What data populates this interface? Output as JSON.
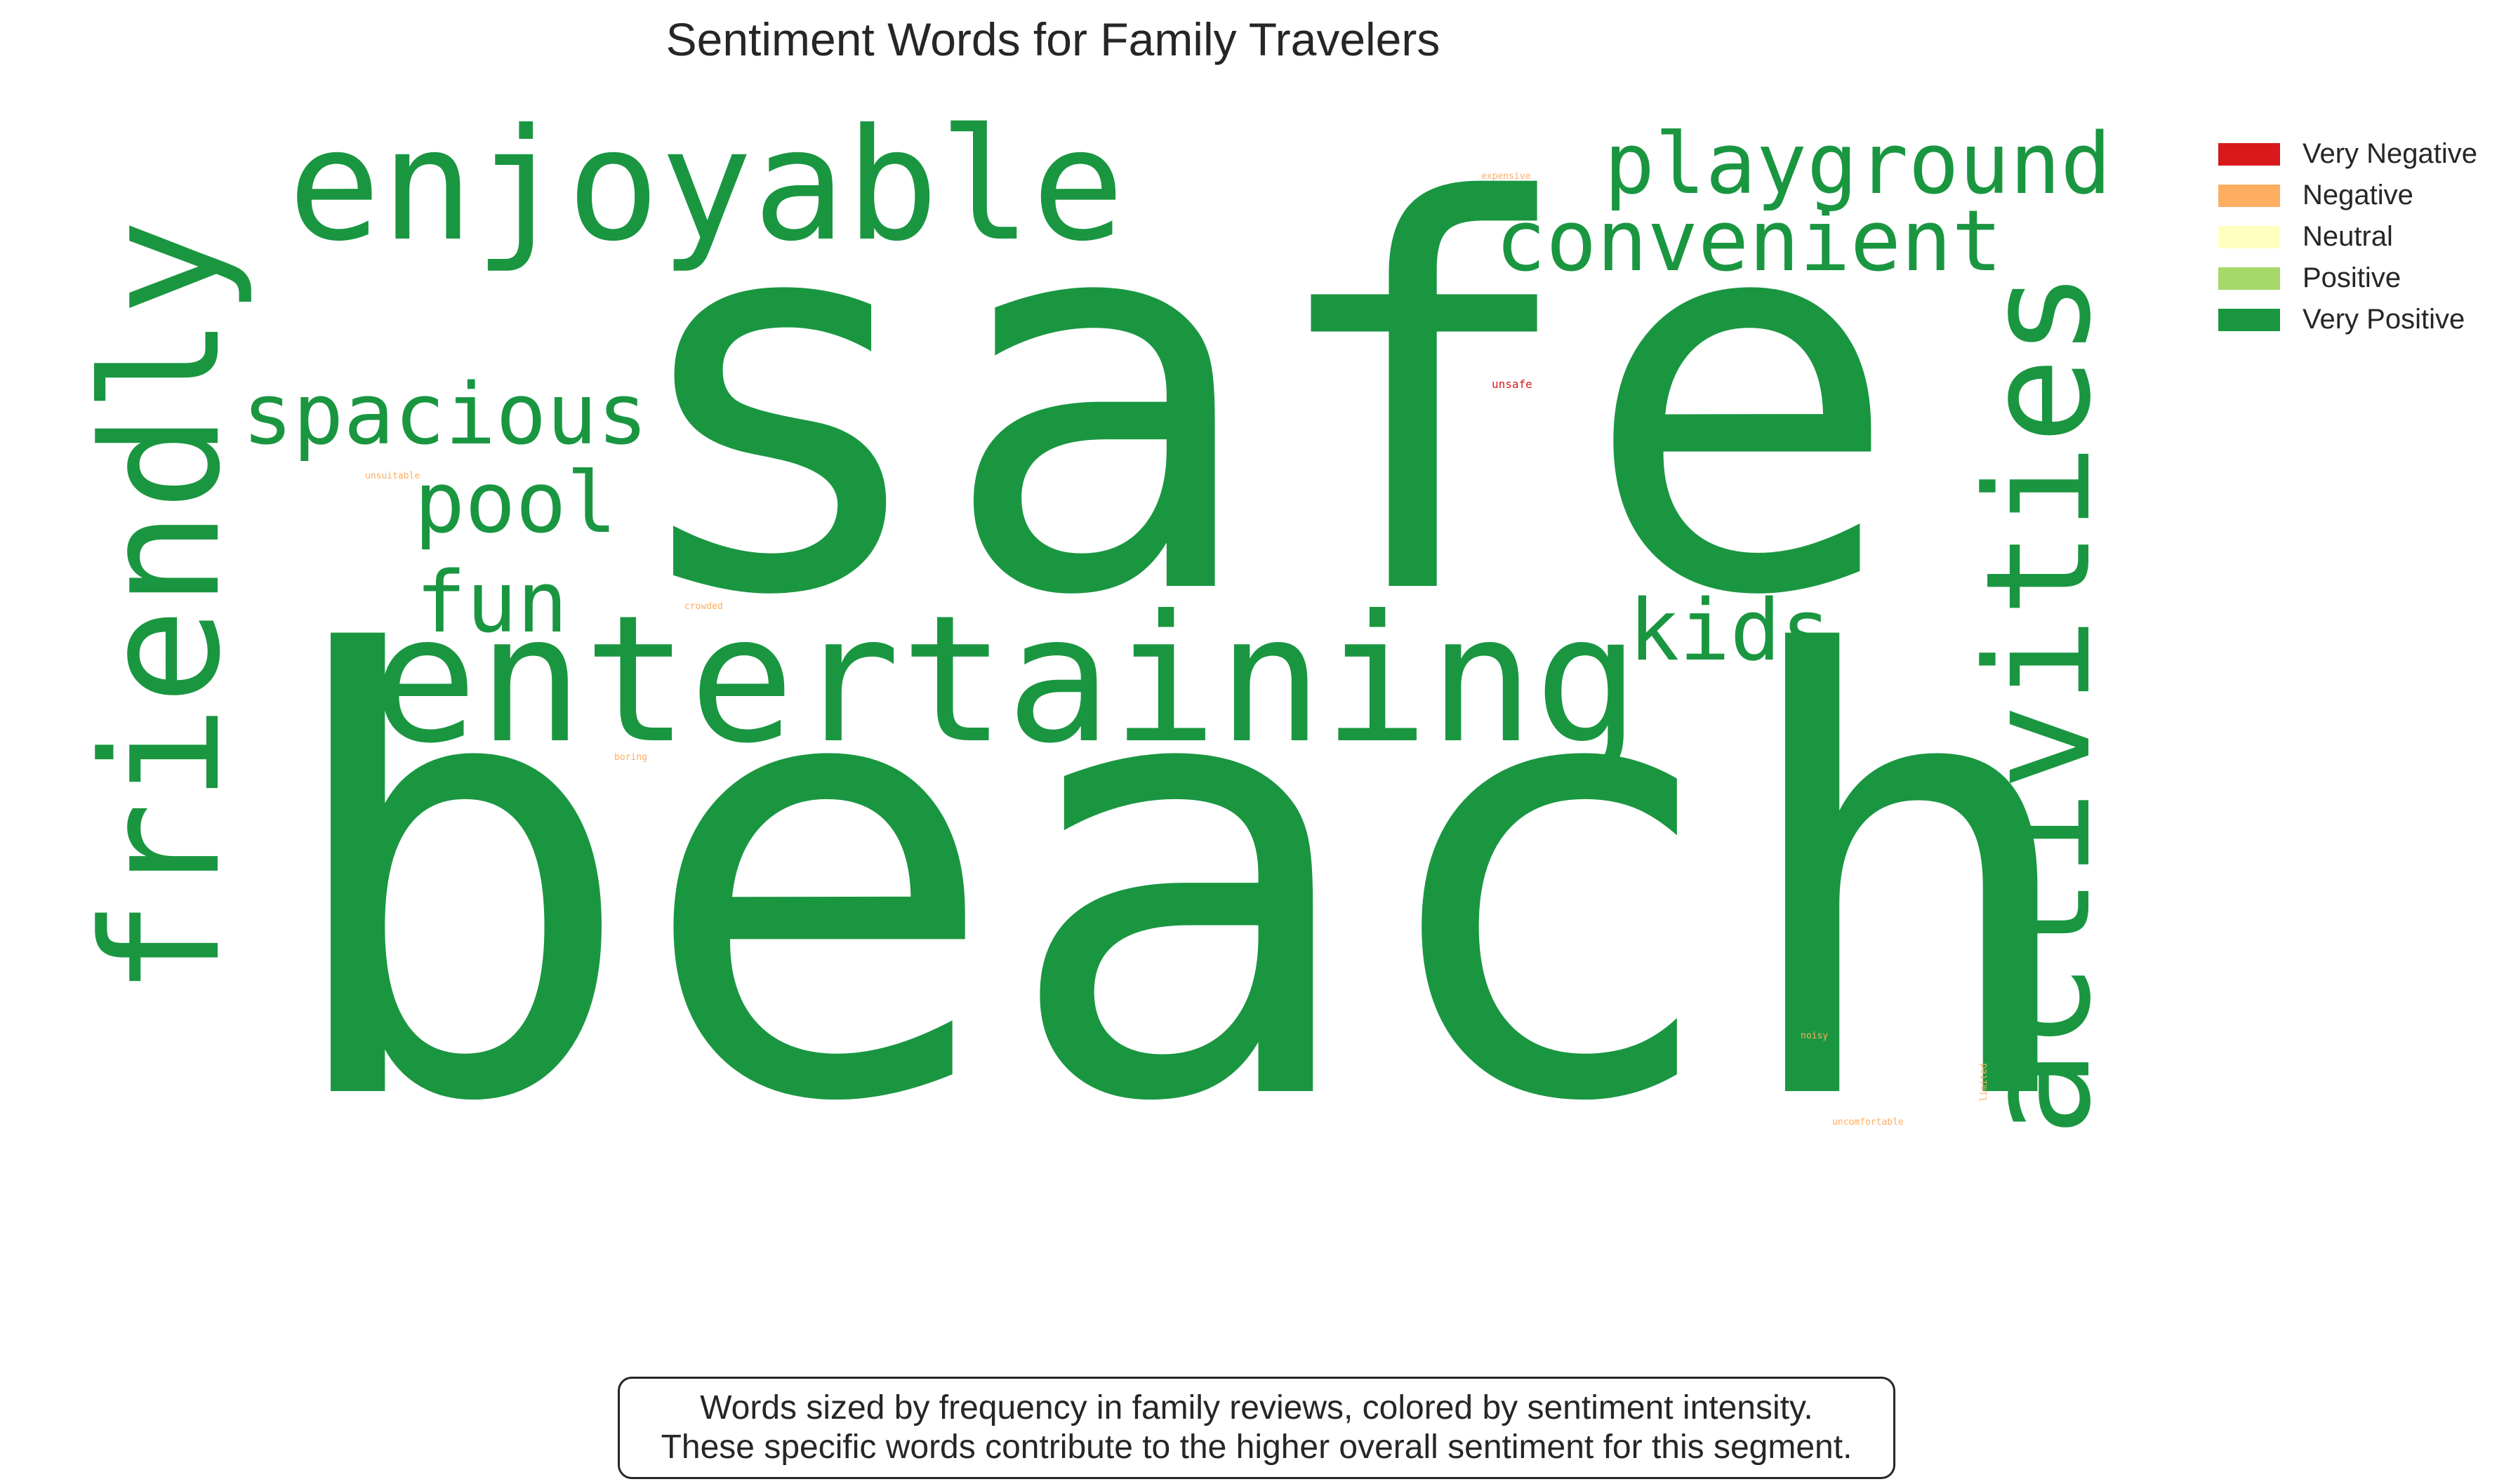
{
  "chart_data": {
    "type": "wordcloud",
    "title": "Sentiment Words for Family Travelers",
    "words": [
      {
        "text": "beach",
        "sentiment": "Very Positive",
        "color": "#1a9641"
      },
      {
        "text": "safe",
        "sentiment": "Very Positive",
        "color": "#1a9641"
      },
      {
        "text": "entertaining",
        "sentiment": "Very Positive",
        "color": "#1a9641"
      },
      {
        "text": "friendly",
        "sentiment": "Very Positive",
        "color": "#1a9641"
      },
      {
        "text": "activities",
        "sentiment": "Very Positive",
        "color": "#1a9641"
      },
      {
        "text": "enjoyable",
        "sentiment": "Very Positive",
        "color": "#1a9641"
      },
      {
        "text": "playground",
        "sentiment": "Very Positive",
        "color": "#1a9641"
      },
      {
        "text": "convenient",
        "sentiment": "Very Positive",
        "color": "#1a9641"
      },
      {
        "text": "spacious",
        "sentiment": "Very Positive",
        "color": "#1a9641"
      },
      {
        "text": "pool",
        "sentiment": "Very Positive",
        "color": "#1a9641"
      },
      {
        "text": "fun",
        "sentiment": "Very Positive",
        "color": "#1a9641"
      },
      {
        "text": "kids",
        "sentiment": "Very Positive",
        "color": "#1a9641"
      },
      {
        "text": "unsafe",
        "sentiment": "Very Negative",
        "color": "#d7191c"
      },
      {
        "text": "expensive",
        "sentiment": "Negative",
        "color": "#fdae61"
      },
      {
        "text": "unsuitable",
        "sentiment": "Negative",
        "color": "#fdae61"
      },
      {
        "text": "crowded",
        "sentiment": "Negative",
        "color": "#fdae61"
      },
      {
        "text": "boring",
        "sentiment": "Negative",
        "color": "#fdae61"
      },
      {
        "text": "noisy",
        "sentiment": "Negative",
        "color": "#fdae61"
      },
      {
        "text": "uncomfortable",
        "sentiment": "Negative",
        "color": "#fdae61"
      },
      {
        "text": "limited",
        "sentiment": "Negative",
        "color": "#fdae61"
      }
    ],
    "legend": {
      "placement": "top-right",
      "items": [
        {
          "label": "Very Negative",
          "color": "#d7191c"
        },
        {
          "label": "Negative",
          "color": "#fdae61"
        },
        {
          "label": "Neutral",
          "color": "#ffffbf"
        },
        {
          "label": "Positive",
          "color": "#a6d96a"
        },
        {
          "label": "Very Positive",
          "color": "#1a9641"
        }
      ]
    },
    "caption": [
      "Words sized by frequency in family reviews, colored by sentiment intensity.",
      "These specific words contribute to the higher overall sentiment for this segment."
    ]
  }
}
